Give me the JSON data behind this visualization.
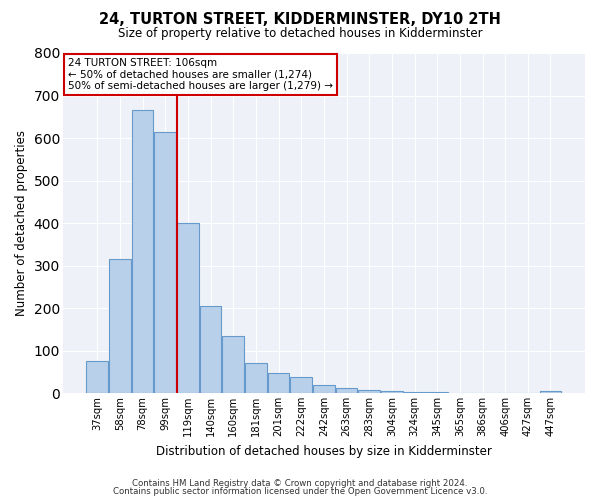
{
  "title": "24, TURTON STREET, KIDDERMINSTER, DY10 2TH",
  "subtitle": "Size of property relative to detached houses in Kidderminster",
  "xlabel": "Distribution of detached houses by size in Kidderminster",
  "ylabel": "Number of detached properties",
  "all_values": [
    75,
    315,
    665,
    615,
    400,
    205,
    135,
    70,
    47,
    37,
    20,
    12,
    8,
    5,
    3,
    2,
    1,
    1,
    1,
    1,
    5
  ],
  "bar_labels": [
    "37sqm",
    "58sqm",
    "78sqm",
    "99sqm",
    "119sqm",
    "140sqm",
    "160sqm",
    "181sqm",
    "201sqm",
    "222sqm",
    "242sqm",
    "263sqm",
    "283sqm",
    "304sqm",
    "324sqm",
    "345sqm",
    "365sqm",
    "386sqm",
    "406sqm",
    "427sqm",
    "447sqm"
  ],
  "bar_color": "#b8d0ea",
  "bar_edge_color": "#6699cc",
  "vline_color": "#cc0000",
  "annotation_title": "24 TURTON STREET: 106sqm",
  "annotation_line1": "← 50% of detached houses are smaller (1,274)",
  "annotation_line2": "50% of semi-detached houses are larger (1,279) →",
  "annotation_box_color": "#cc0000",
  "ylim": [
    0,
    800
  ],
  "yticks": [
    0,
    100,
    200,
    300,
    400,
    500,
    600,
    700,
    800
  ],
  "footnote1": "Contains HM Land Registry data © Crown copyright and database right 2024.",
  "footnote2": "Contains public sector information licensed under the Open Government Licence v3.0.",
  "bg_color": "#eef2f8",
  "fig_bg_color": "#ffffff",
  "grid_color": "#ffffff"
}
